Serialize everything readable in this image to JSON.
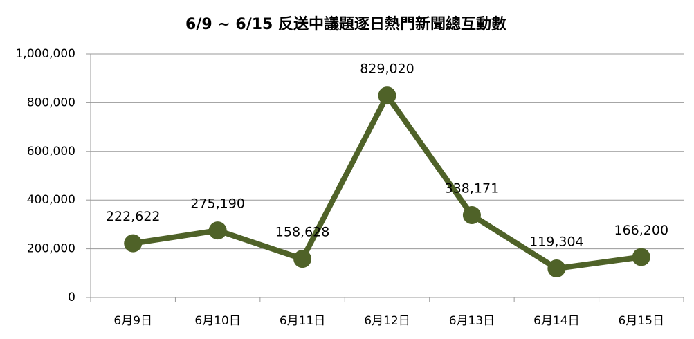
{
  "chart_data": {
    "type": "line",
    "title": "6/9 ~ 6/15 反送中議題逐日熱門新聞總互動數",
    "categories": [
      "6月9日",
      "6月10日",
      "6月11日",
      "6月12日",
      "6月13日",
      "6月14日",
      "6月15日"
    ],
    "values": [
      222622,
      275190,
      158628,
      829020,
      338171,
      119304,
      166200
    ],
    "value_labels": [
      "222,622",
      "275,190",
      "158,628",
      "829,020",
      "338,171",
      "119,304",
      "166,200"
    ],
    "color": "#4f6228",
    "ylim": [
      0,
      1000000
    ],
    "yticks": [
      0,
      {
        "value": 200000,
        "label": "200,000"
      },
      {
        "value": 400000,
        "label": "400,000"
      },
      {
        "value": 600000,
        "label": "600,000"
      },
      {
        "value": 800000,
        "label": "800,000"
      },
      {
        "value": 1000000,
        "label": "1,000,000"
      }
    ],
    "grid": true
  }
}
